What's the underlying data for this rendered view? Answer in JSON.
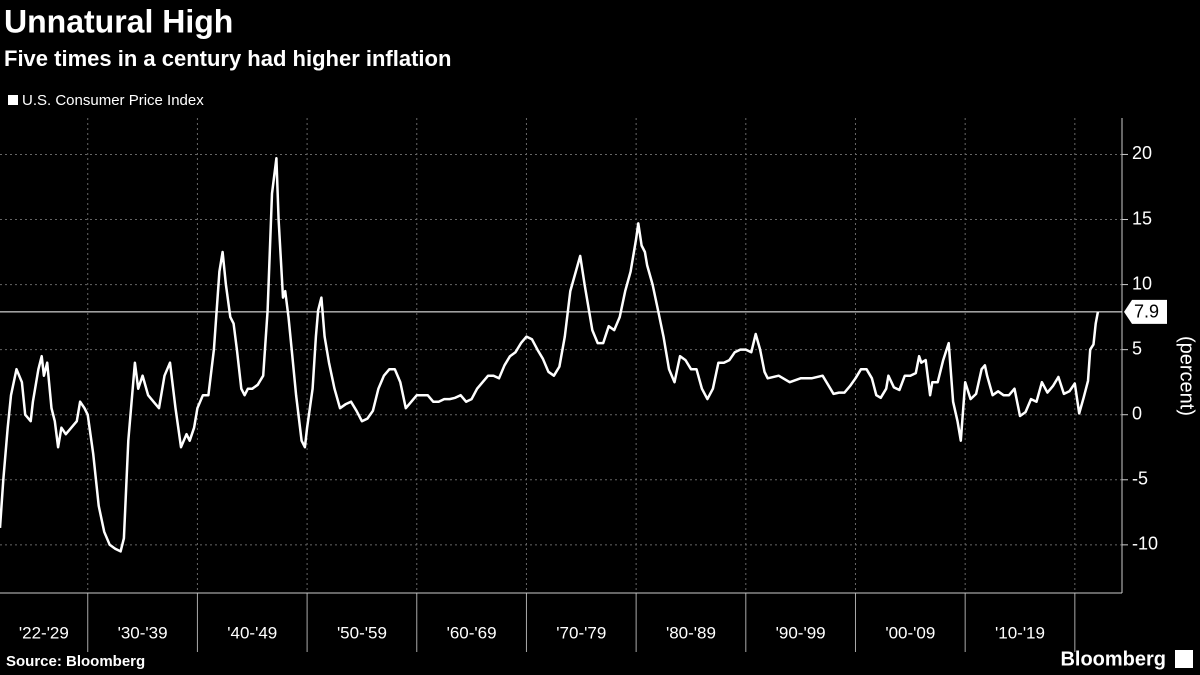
{
  "chart_data": {
    "type": "line",
    "title": "Unnatural High",
    "subtitle": "Five times in a century had higher inflation",
    "y_axis_label": "(percent)",
    "source": "Source: Bloomberg",
    "brand": "Bloomberg",
    "reference_line": 7.9,
    "periods": [
      "'22-'29",
      "'30-'39",
      "'40-'49",
      "'50-'59",
      "'60-'69",
      "'70-'79",
      "'80-'89",
      "'90-'99",
      "'00-'09",
      "'10-'19"
    ],
    "xlim": [
      1922,
      2024.3
    ],
    "xticks": [
      1930,
      1940,
      1950,
      1960,
      1970,
      1980,
      1990,
      2000,
      2010,
      2020
    ],
    "ylim": [
      -13.7,
      22.8
    ],
    "yticks": [
      -10,
      -5,
      0,
      5,
      10,
      15,
      20
    ],
    "grid": true,
    "x": [
      1922.0,
      1922.3,
      1922.7,
      1923.0,
      1923.5,
      1924.0,
      1924.3,
      1924.8,
      1925.0,
      1925.5,
      1925.8,
      1926.0,
      1926.3,
      1926.7,
      1927.0,
      1927.3,
      1927.6,
      1928.0,
      1928.5,
      1929.0,
      1929.3,
      1929.7,
      1930.0,
      1930.5,
      1931.0,
      1931.5,
      1932.0,
      1932.5,
      1933.0,
      1933.3,
      1933.7,
      1934.0,
      1934.3,
      1934.6,
      1935.0,
      1935.5,
      1936.0,
      1936.5,
      1937.0,
      1937.5,
      1938.0,
      1938.5,
      1939.0,
      1939.3,
      1939.7,
      1940.0,
      1940.5,
      1941.0,
      1941.5,
      1942.0,
      1942.3,
      1942.6,
      1943.0,
      1943.3,
      1943.6,
      1944.0,
      1944.3,
      1944.6,
      1945.0,
      1945.5,
      1946.0,
      1946.4,
      1946.8,
      1947.2,
      1947.4,
      1947.6,
      1947.8,
      1948.0,
      1948.3,
      1948.6,
      1949.0,
      1949.5,
      1949.8,
      1950.0,
      1950.5,
      1950.8,
      1951.0,
      1951.3,
      1951.6,
      1952.0,
      1952.5,
      1953.0,
      1953.5,
      1954.0,
      1954.5,
      1955.0,
      1955.5,
      1956.0,
      1956.5,
      1957.0,
      1957.5,
      1958.0,
      1958.5,
      1959.0,
      1959.5,
      1960.0,
      1960.5,
      1961.0,
      1961.5,
      1962.0,
      1962.5,
      1963.0,
      1963.5,
      1964.0,
      1964.5,
      1965.0,
      1965.5,
      1966.0,
      1966.5,
      1967.0,
      1967.5,
      1968.0,
      1968.5,
      1969.0,
      1969.5,
      1970.0,
      1970.5,
      1971.0,
      1971.5,
      1972.0,
      1972.5,
      1973.0,
      1973.5,
      1974.0,
      1974.5,
      1974.9,
      1975.3,
      1975.7,
      1976.0,
      1976.5,
      1977.0,
      1977.5,
      1978.0,
      1978.5,
      1979.0,
      1979.5,
      1980.0,
      1980.2,
      1980.5,
      1980.8,
      1981.0,
      1981.5,
      1982.0,
      1982.5,
      1983.0,
      1983.5,
      1984.0,
      1984.5,
      1985.0,
      1985.5,
      1986.0,
      1986.5,
      1987.0,
      1987.5,
      1988.0,
      1988.5,
      1989.0,
      1989.5,
      1990.0,
      1990.5,
      1990.9,
      1991.3,
      1991.7,
      1992.0,
      1993.0,
      1994.0,
      1995.0,
      1996.0,
      1997.0,
      1997.5,
      1998.0,
      1998.5,
      1999.0,
      1999.5,
      2000.0,
      2000.5,
      2001.0,
      2001.5,
      2001.9,
      2002.3,
      2002.8,
      2003.0,
      2003.5,
      2004.0,
      2004.5,
      2005.0,
      2005.5,
      2005.8,
      2006.0,
      2006.4,
      2006.8,
      2007.0,
      2007.5,
      2008.0,
      2008.5,
      2008.9,
      2009.3,
      2009.6,
      2010.0,
      2010.5,
      2011.0,
      2011.5,
      2011.8,
      2012.0,
      2012.5,
      2013.0,
      2013.5,
      2014.0,
      2014.5,
      2015.0,
      2015.5,
      2016.0,
      2016.5,
      2017.0,
      2017.5,
      2018.0,
      2018.5,
      2019.0,
      2019.5,
      2020.0,
      2020.4,
      2020.8,
      2021.2,
      2021.4,
      2021.7,
      2021.9,
      2022.1
    ],
    "series": [
      {
        "name": "U.S. Consumer Price Index",
        "color": "#ffffff",
        "values": [
          -8.7,
          -5,
          -1,
          1.5,
          3.5,
          2.5,
          0,
          -0.5,
          1,
          3.5,
          4.5,
          3,
          4,
          0.5,
          -0.5,
          -2.5,
          -1,
          -1.5,
          -1,
          -0.5,
          1,
          0.5,
          0,
          -3,
          -7,
          -9,
          -10,
          -10.3,
          -10.5,
          -9.5,
          -2,
          1,
          4,
          2,
          3,
          1.5,
          1,
          0.5,
          3,
          4,
          0.5,
          -2.5,
          -1.5,
          -2,
          -1,
          0.5,
          1.5,
          1.5,
          5,
          11,
          12.5,
          10,
          7.5,
          7,
          5,
          2,
          1.5,
          2,
          2,
          2.3,
          3,
          8,
          17,
          19.7,
          15,
          12,
          9,
          9.5,
          7.5,
          5,
          1.5,
          -2,
          -2.5,
          -1,
          2,
          6,
          8,
          9,
          6,
          4,
          2,
          0.5,
          0.8,
          1,
          0.3,
          -0.5,
          -0.3,
          0.3,
          2,
          3,
          3.5,
          3.5,
          2.5,
          0.5,
          1,
          1.5,
          1.5,
          1.5,
          1,
          1,
          1.2,
          1.2,
          1.3,
          1.5,
          1,
          1.2,
          2,
          2.5,
          3,
          3,
          2.8,
          3.8,
          4.5,
          4.8,
          5.5,
          6,
          5.8,
          5,
          4.3,
          3.3,
          3,
          3.7,
          6,
          9.5,
          11,
          12.2,
          10,
          8,
          6.5,
          5.5,
          5.5,
          6.8,
          6.5,
          7.5,
          9.5,
          11,
          13.5,
          14.7,
          13,
          12.5,
          11.5,
          10,
          8,
          6,
          3.5,
          2.5,
          4.5,
          4.2,
          3.5,
          3.5,
          2,
          1.2,
          2,
          4,
          4,
          4.2,
          4.8,
          5,
          5,
          4.8,
          6.2,
          5,
          3.3,
          2.8,
          3,
          2.5,
          2.8,
          2.8,
          3,
          2.3,
          1.6,
          1.7,
          1.7,
          2.2,
          2.8,
          3.5,
          3.5,
          2.8,
          1.5,
          1.3,
          2,
          3,
          2.1,
          1.9,
          3,
          3,
          3.2,
          4.5,
          4,
          4.2,
          1.5,
          2.5,
          2.5,
          4.2,
          5.5,
          1,
          -0.5,
          -2,
          2.5,
          1.2,
          1.6,
          3.5,
          3.8,
          3,
          1.5,
          1.8,
          1.5,
          1.5,
          2,
          -0.1,
          0.2,
          1.2,
          1,
          2.5,
          1.7,
          2.2,
          2.9,
          1.6,
          1.8,
          2.4,
          0.1,
          1.3,
          2.6,
          5,
          5.4,
          7,
          7.9
        ]
      }
    ]
  }
}
